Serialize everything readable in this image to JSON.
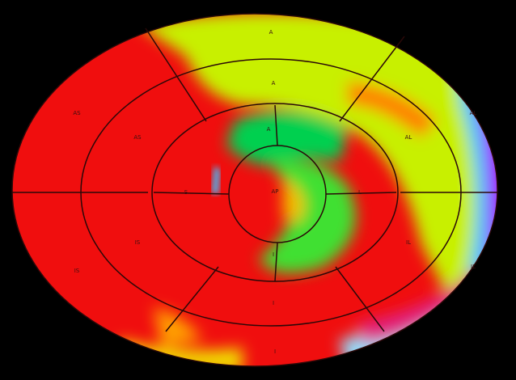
{
  "segments": [
    {
      "label": "A"
    },
    {
      "label": "AL"
    },
    {
      "label": "IL"
    },
    {
      "label": "I"
    },
    {
      "label": "IS"
    },
    {
      "label": "AS"
    },
    {
      "label": "A"
    },
    {
      "label": "AL"
    },
    {
      "label": "IL"
    },
    {
      "label": "I"
    },
    {
      "label": "IS"
    },
    {
      "label": "AS"
    },
    {
      "label": "A"
    },
    {
      "label": "L"
    },
    {
      "label": "I"
    },
    {
      "label": "S"
    },
    {
      "label": "AP"
    }
  ]
}
